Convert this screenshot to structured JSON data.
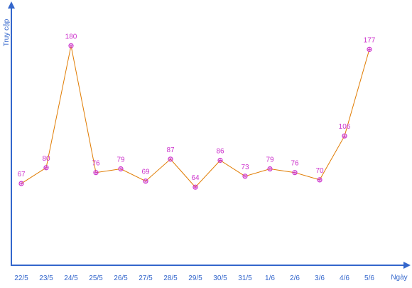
{
  "chart_data": {
    "type": "line",
    "title": "",
    "xlabel": "Ngày",
    "ylabel": "Truy cập",
    "categories": [
      "22/5",
      "23/5",
      "24/5",
      "25/5",
      "26/5",
      "27/5",
      "28/5",
      "29/5",
      "30/5",
      "31/5",
      "1/6",
      "2/6",
      "3/6",
      "4/6",
      "5/6"
    ],
    "series": [
      {
        "values": [
          67,
          80,
          180,
          76,
          79,
          69,
          87,
          64,
          86,
          73,
          79,
          76,
          70,
          106,
          177
        ]
      }
    ],
    "ylim": [
      0,
      200
    ],
    "grid": false,
    "data_labels": true,
    "colors": {
      "axis": "#3366cc",
      "line": "#e07b00",
      "marker": "#cc33cc",
      "data_label": "#cc33cc",
      "tick_label": "#3366cc"
    }
  }
}
